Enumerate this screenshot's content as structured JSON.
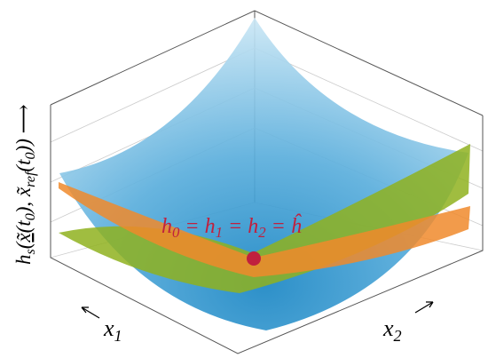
{
  "y_label": [
    "h",
    "s",
    "(",
    "x̃",
    "(",
    "t",
    "0",
    "), ",
    "x̃",
    "ref",
    "(",
    "t",
    "0",
    "))",
    " ⟶"
  ],
  "x1_label": [
    "x",
    "1"
  ],
  "x2_label": [
    "x",
    "2"
  ],
  "annotation": [
    "h",
    "0",
    " = ",
    "h",
    "1",
    " = ",
    "h",
    "2",
    " = ",
    "ĥ"
  ]
}
